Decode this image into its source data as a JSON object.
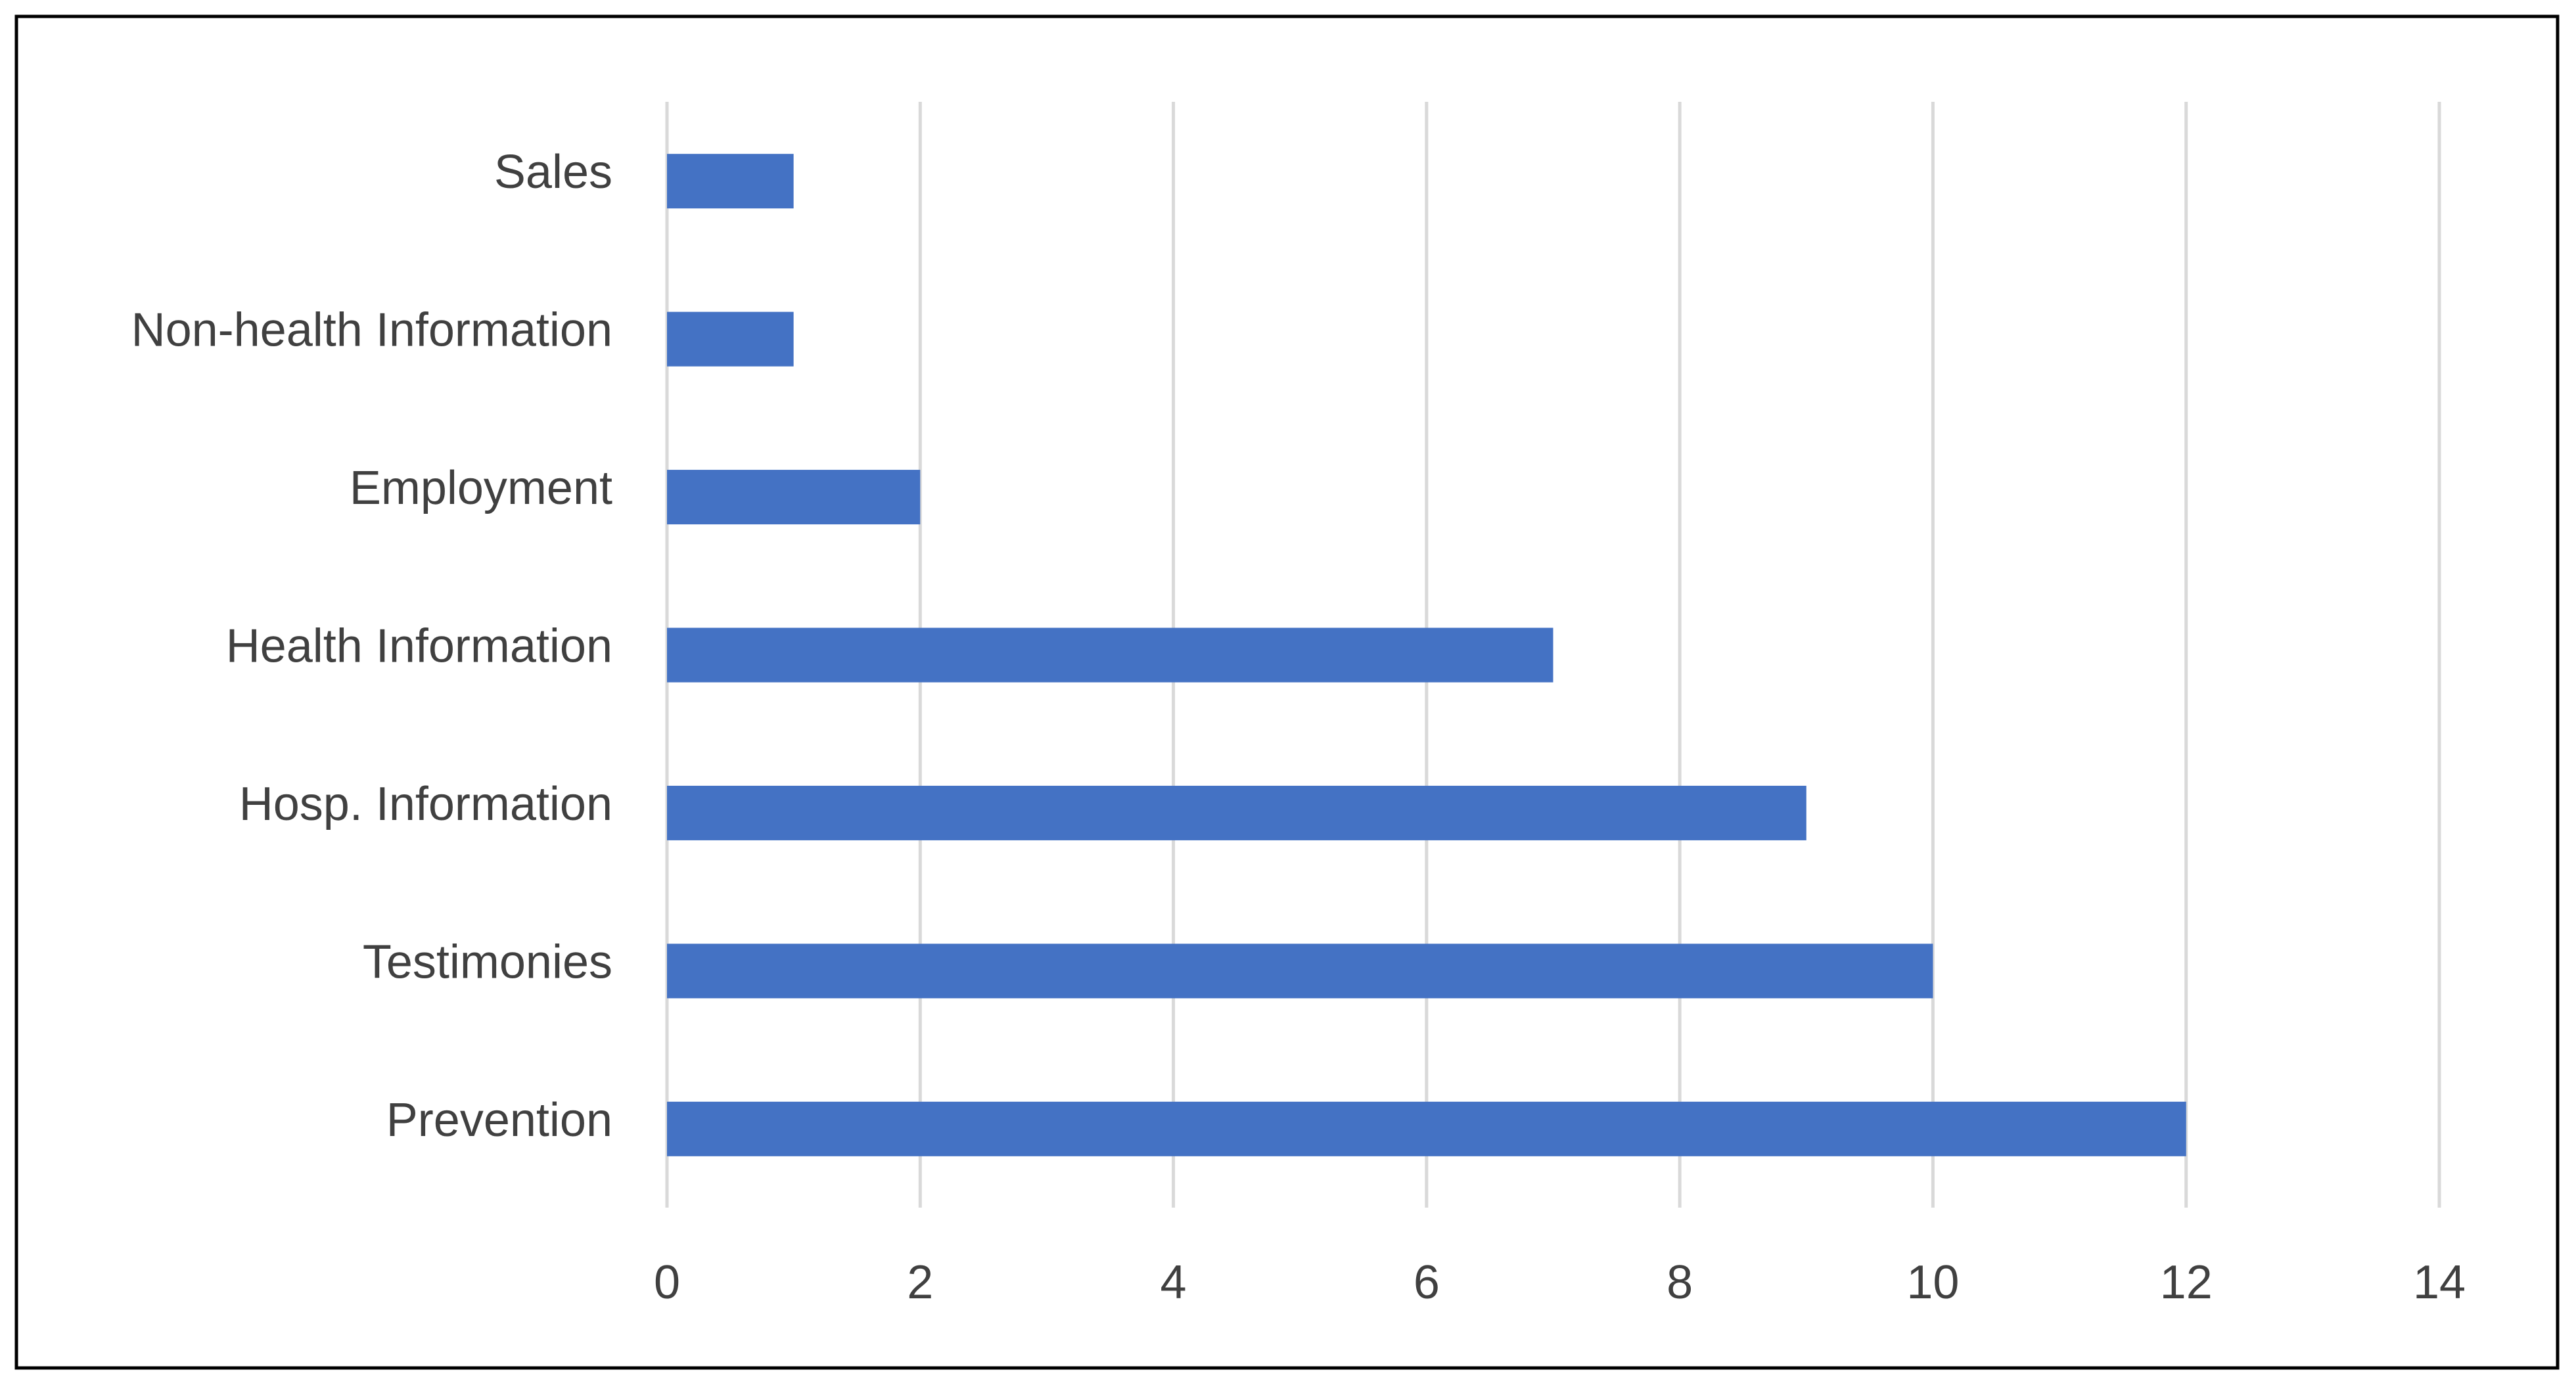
{
  "chart_data": {
    "type": "bar",
    "orientation": "horizontal",
    "categories": [
      "Sales",
      "Non-health Information",
      "Employment",
      "Health Information",
      "Hosp. Information",
      "Testimonies",
      "Prevention"
    ],
    "values": [
      1,
      1,
      2,
      7,
      9,
      10,
      12
    ],
    "color": "#4472c4",
    "xlim": [
      0,
      14
    ],
    "xticks": [
      0,
      2,
      4,
      6,
      8,
      10,
      12,
      14
    ],
    "grid": true
  }
}
